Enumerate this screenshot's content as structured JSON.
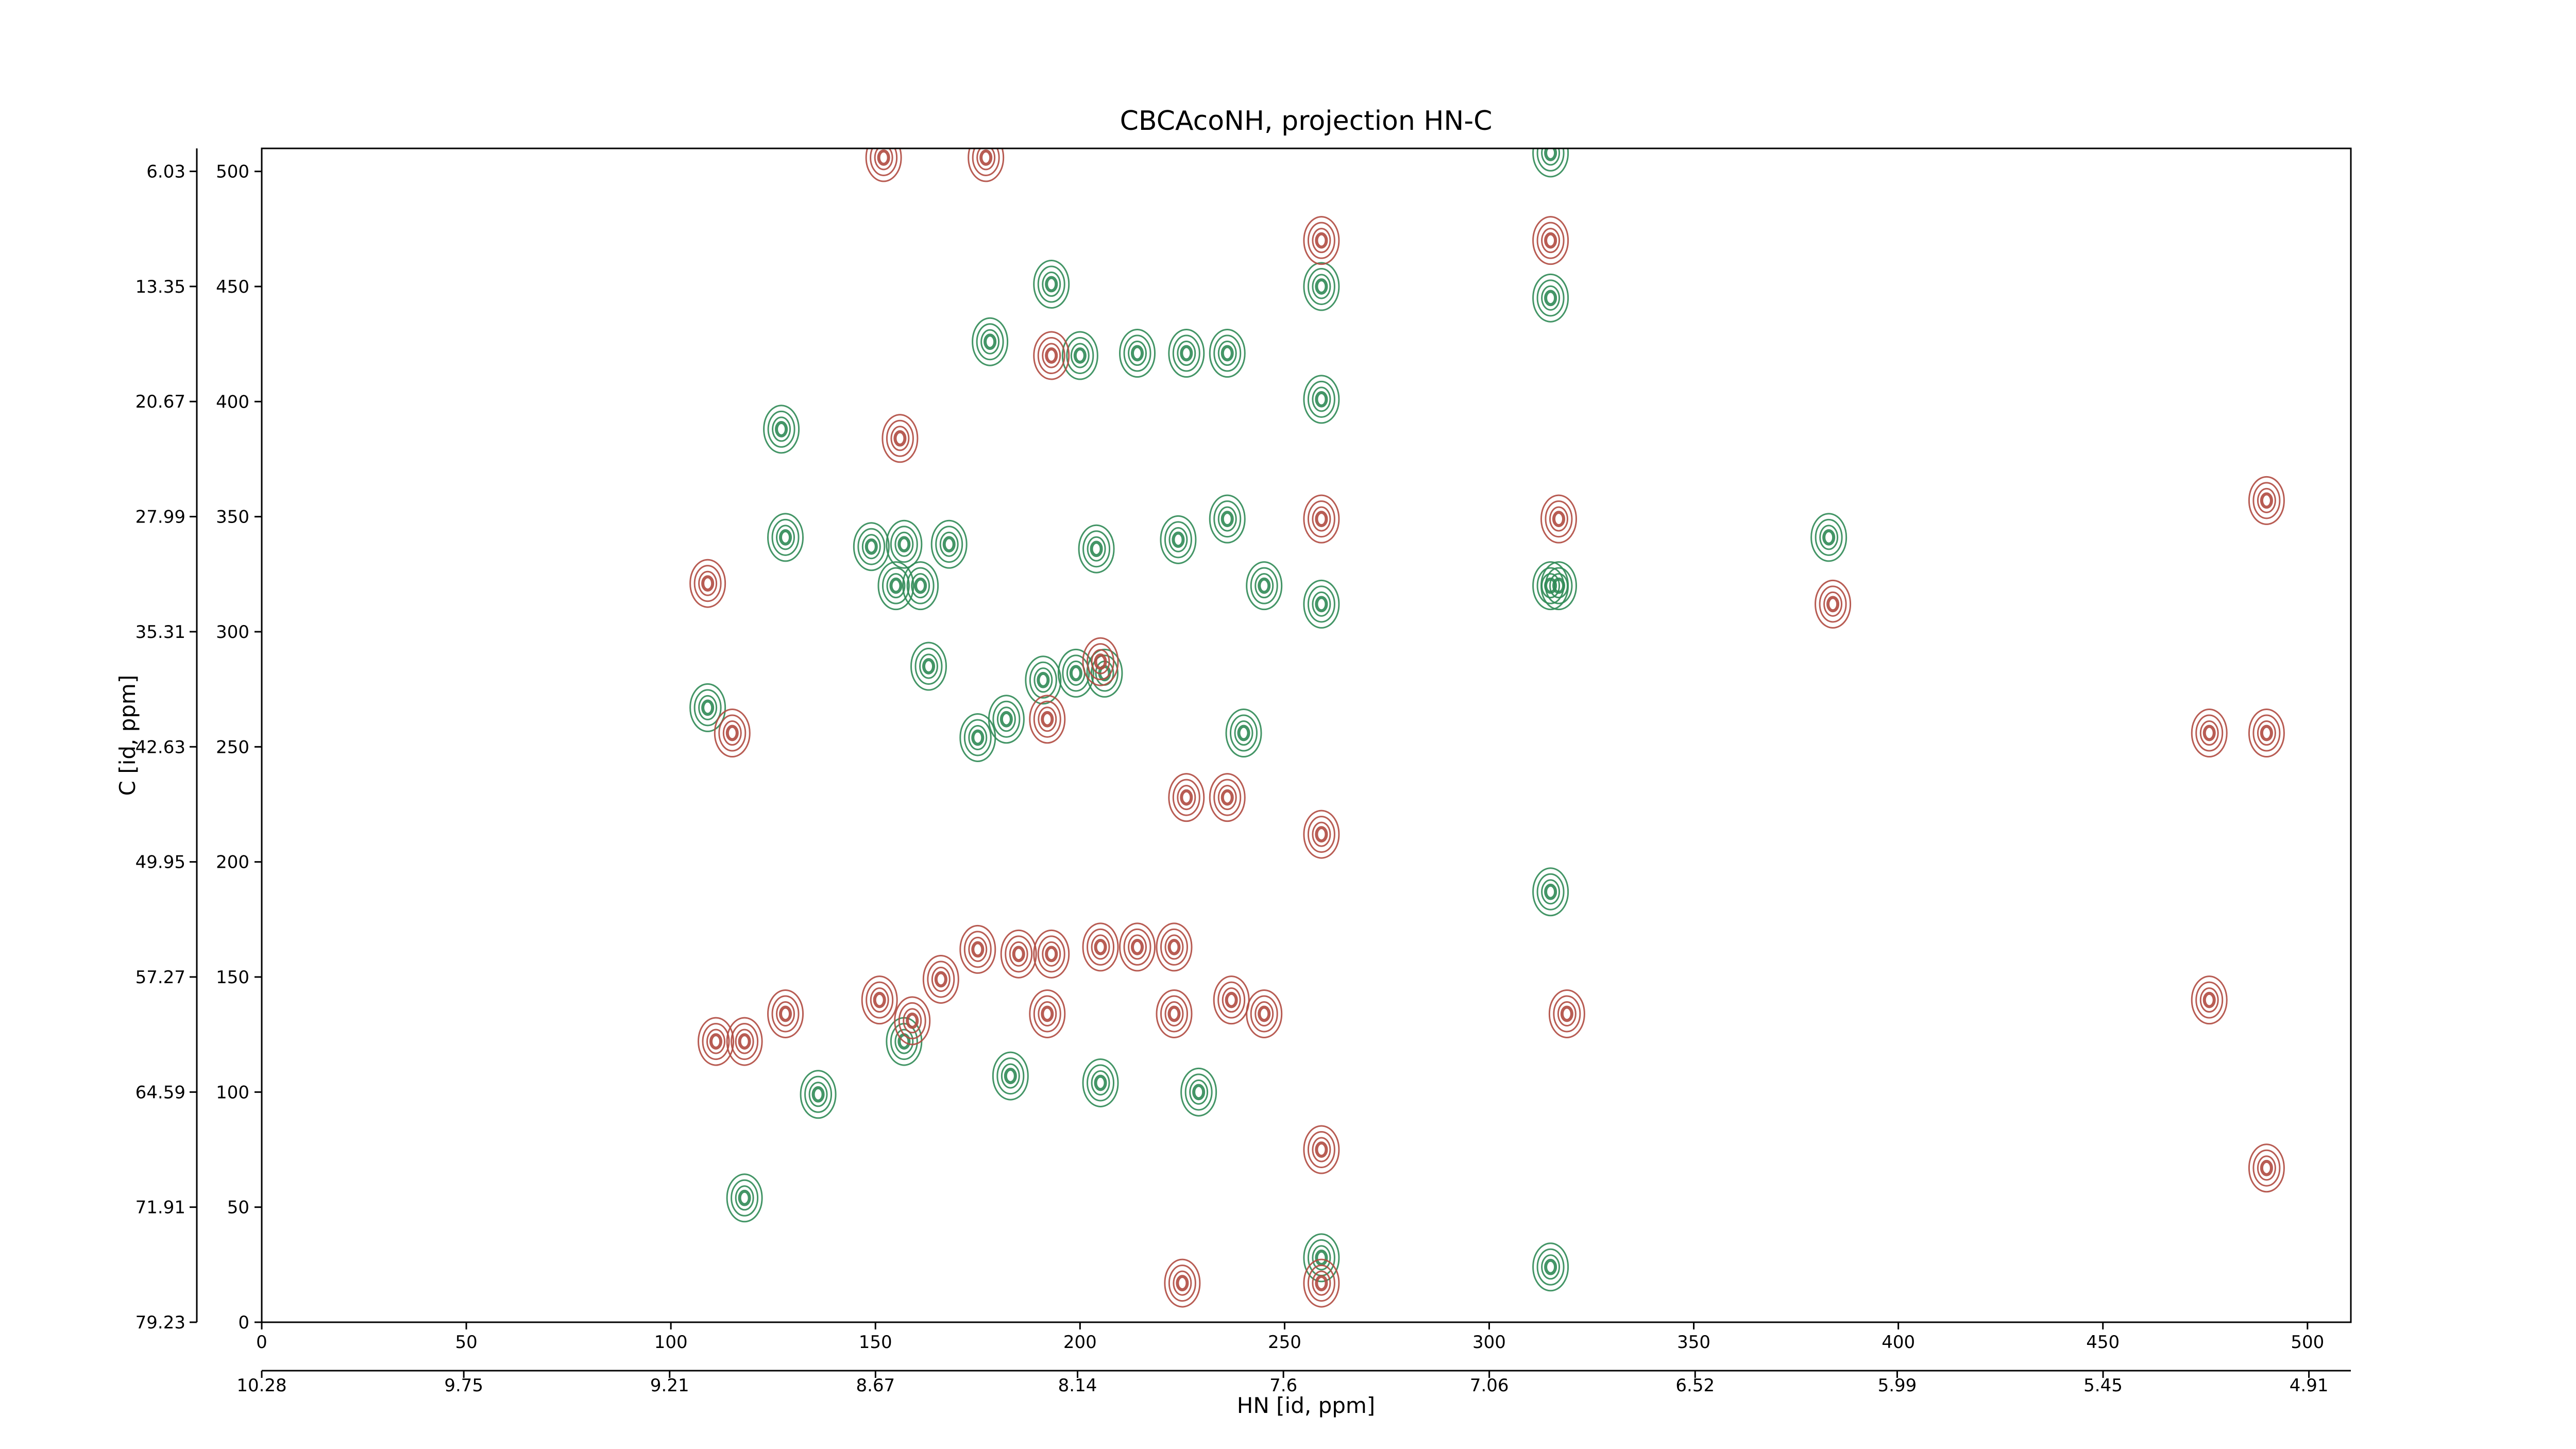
{
  "chart_data": {
    "type": "contour",
    "title": "CBCAcoNH, projection HN-C",
    "xlabel": "HN [id, ppm]",
    "ylabel": "C [id, ppm]",
    "xlim": [
      0,
      510.6
    ],
    "ylim": [
      0,
      510
    ],
    "xticks": [
      0,
      50,
      100,
      150,
      200,
      250,
      300,
      350,
      400,
      450,
      500
    ],
    "yticks": [
      0,
      50,
      100,
      150,
      200,
      250,
      300,
      350,
      400,
      450,
      500
    ],
    "x2lim": [
      10.28,
      4.8
    ],
    "x2ticks": [
      10.28,
      9.75,
      9.21,
      8.67,
      8.14,
      7.6,
      7.06,
      6.52,
      5.99,
      5.45,
      4.91
    ],
    "y2lim": [
      79.23,
      4.57
    ],
    "y2ticks": [
      79.23,
      71.91,
      64.59,
      57.27,
      49.95,
      42.63,
      35.31,
      27.99,
      20.67,
      13.35,
      6.03
    ],
    "series": [
      {
        "color": "#2f8a55",
        "x": [
          109,
          118,
          128,
          136,
          149,
          157,
          168,
          155,
          161,
          163,
          175,
          182,
          191,
          199,
          206,
          204,
          200,
          214,
          226,
          236,
          224,
          236,
          245,
          259,
          259,
          259,
          315,
          317,
          315,
          315,
          315,
          315,
          383,
          178,
          240,
          157,
          183,
          205,
          229,
          259,
          193,
          127
        ],
        "y": [
          267,
          54,
          341,
          99,
          337,
          338,
          338,
          320,
          320,
          285,
          254,
          262,
          279,
          282,
          282,
          336,
          420,
          421,
          421,
          421,
          340,
          349,
          320,
          312,
          450,
          401,
          320,
          320,
          187,
          24,
          445,
          508,
          341,
          426,
          256,
          122,
          107,
          104,
          100,
          28,
          451,
          388
        ]
      },
      {
        "color": "#b04a40",
        "x": [
          111,
          118,
          128,
          151,
          159,
          166,
          175,
          185,
          193,
          205,
          214,
          223,
          192,
          223,
          237,
          245,
          259,
          259,
          259,
          259,
          259,
          317,
          319,
          315,
          226,
          236,
          192,
          205,
          156,
          193,
          225,
          384,
          109,
          476,
          490,
          476,
          490,
          490,
          115,
          177,
          152
        ],
        "y": [
          122,
          122,
          134,
          140,
          131,
          149,
          162,
          160,
          160,
          163,
          163,
          163,
          134,
          134,
          140,
          134,
          349,
          470,
          212,
          75,
          17,
          349,
          134,
          470,
          228,
          228,
          262,
          287,
          384,
          420,
          17,
          312,
          321,
          256,
          256,
          140,
          357,
          67,
          256,
          506,
          506
        ]
      }
    ]
  }
}
